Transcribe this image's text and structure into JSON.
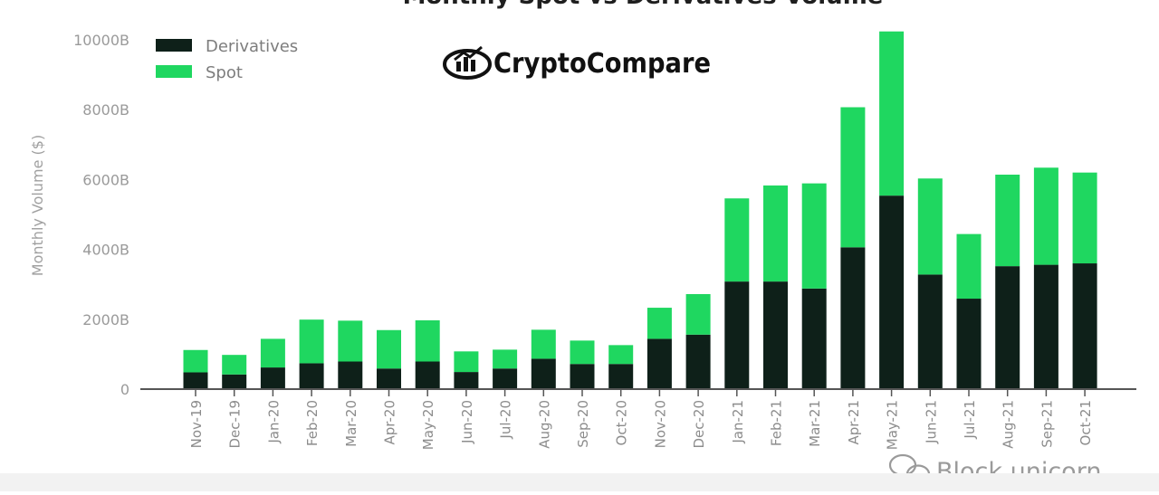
{
  "chart_data": {
    "type": "bar",
    "stacked": true,
    "title": "Monthly Spot vs Derivatives Volume",
    "ylabel": "Monthly Volume ($)",
    "ylim": [
      0,
      10000
    ],
    "yticks": [
      0,
      2000,
      4000,
      6000,
      8000,
      10000
    ],
    "ytick_labels": [
      "0",
      "2000B",
      "4000B",
      "6000B",
      "8000B",
      "10000B"
    ],
    "grid": false,
    "legend_position": "top-left",
    "categories": [
      "Nov-19",
      "Dec-19",
      "Jan-20",
      "Feb-20",
      "Mar-20",
      "Apr-20",
      "May-20",
      "Jun-20",
      "Jul-20",
      "Aug-20",
      "Sep-20",
      "Oct-20",
      "Nov-20",
      "Dec-20",
      "Jan-21",
      "Feb-21",
      "Mar-21",
      "Apr-21",
      "May-21",
      "Jun-21",
      "Jul-21",
      "Aug-21",
      "Sep-21",
      "Oct-21"
    ],
    "series": [
      {
        "name": "Derivatives",
        "color": "#0e2019",
        "values": [
          480,
          420,
          620,
          740,
          790,
          590,
          790,
          490,
          590,
          870,
          720,
          720,
          1440,
          1560,
          3080,
          3080,
          2880,
          4060,
          5540,
          3280,
          2590,
          3520,
          3560,
          3600
        ]
      },
      {
        "name": "Spot",
        "color": "#1fd760",
        "values": [
          640,
          560,
          820,
          1250,
          1170,
          1100,
          1180,
          590,
          540,
          830,
          670,
          540,
          890,
          1160,
          2380,
          2750,
          3010,
          4010,
          4700,
          2750,
          1850,
          2620,
          2780,
          2600
        ]
      }
    ]
  },
  "branding": {
    "logo_text": "CryptoCompare",
    "logo_icon": "cryptocompare-chart-logo",
    "watermark_text": "Block unicorn",
    "watermark_icon": "wechat-icon"
  }
}
